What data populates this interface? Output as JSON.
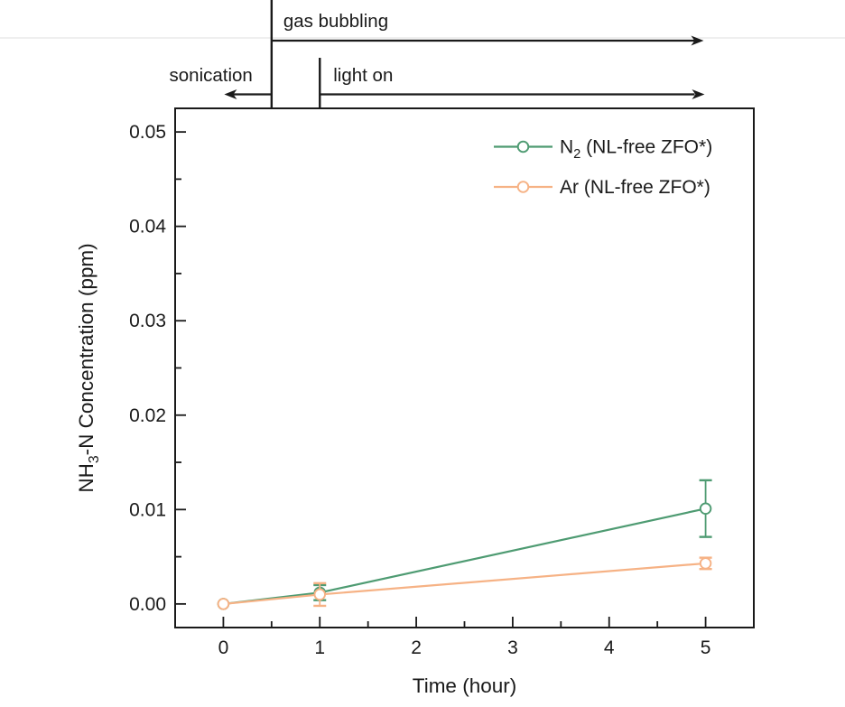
{
  "figure": {
    "background": "#ffffff",
    "divider_color": "#eaeaea",
    "ink_color": "#1a1a1a"
  },
  "annotations": {
    "gas_bubbling": {
      "label": "gas bubbling",
      "start_time": 0.5,
      "end_time": 4.98,
      "direction": "right"
    },
    "sonication": {
      "label": "sonication",
      "start_time": 0.5,
      "end_time": 0.0,
      "direction": "left"
    },
    "light_on": {
      "label": "light on",
      "start_time": 1.0,
      "end_time": 4.98,
      "direction": "right"
    }
  },
  "chart_data": {
    "type": "line",
    "title": "",
    "xlabel": "Time (hour)",
    "ylabel": "NH3-N Concentration (ppm)",
    "ylabel_parts": [
      {
        "text": "NH"
      },
      {
        "text": "3",
        "sub": true
      },
      {
        "text": "-N Concentration (ppm)"
      }
    ],
    "xlim": [
      -0.5,
      5.5
    ],
    "ylim": [
      -0.0025,
      0.0525
    ],
    "grid": false,
    "legend_position": "top-right",
    "x_major_ticks": [
      {
        "v": 0,
        "label": "0"
      },
      {
        "v": 1,
        "label": "1"
      },
      {
        "v": 2,
        "label": "2"
      },
      {
        "v": 3,
        "label": "3"
      },
      {
        "v": 4,
        "label": "4"
      },
      {
        "v": 5,
        "label": "5"
      }
    ],
    "x_minor_ticks": [
      0.5,
      1.5,
      2.5,
      3.5,
      4.5
    ],
    "y_major_ticks": [
      {
        "v": 0.0,
        "label": "0.00"
      },
      {
        "v": 0.01,
        "label": "0.01"
      },
      {
        "v": 0.02,
        "label": "0.02"
      },
      {
        "v": 0.03,
        "label": "0.03"
      },
      {
        "v": 0.04,
        "label": "0.04"
      },
      {
        "v": 0.05,
        "label": "0.05"
      }
    ],
    "y_minor_ticks": [
      0.005,
      0.015,
      0.025,
      0.035,
      0.045
    ],
    "series": [
      {
        "id": "n2",
        "name": "N2 (NL-free ZFO*)",
        "name_parts": [
          {
            "text": "N"
          },
          {
            "text": "2",
            "sub": true
          },
          {
            "text": " (NL-free ZFO*)"
          }
        ],
        "color": "#4E9B72",
        "marker": "open-circle",
        "x": [
          0,
          1,
          5
        ],
        "y": [
          0.0,
          0.0012,
          0.0101
        ],
        "yerr": [
          0,
          0.0008,
          0.003
        ]
      },
      {
        "id": "ar",
        "name": "Ar (NL-free ZFO*)",
        "name_parts": [
          {
            "text": "Ar (NL-free ZFO*)"
          }
        ],
        "color": "#F6B285",
        "marker": "open-circle",
        "x": [
          0,
          1,
          5
        ],
        "y": [
          0.0,
          0.001,
          0.0043
        ],
        "yerr": [
          0,
          0.0012,
          0.0006
        ]
      }
    ]
  }
}
